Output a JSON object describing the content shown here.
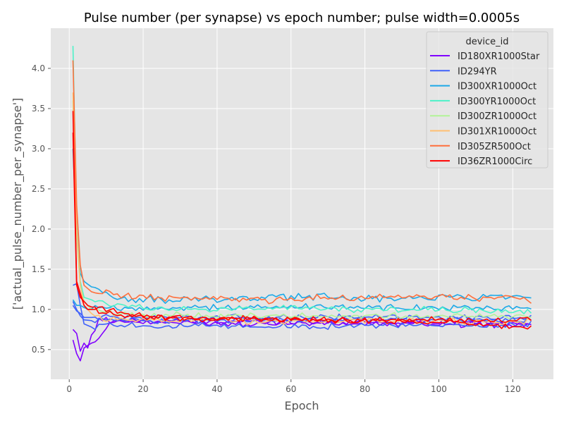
{
  "chart_data": {
    "type": "line",
    "title": "Pulse number (per synapse) vs epoch number; pulse width=0.0005s",
    "xlabel": "Epoch",
    "ylabel": "['actual_pulse_number_per_synapse']",
    "xlim": [
      -5,
      131
    ],
    "ylim": [
      0.13,
      4.5
    ],
    "xticks": [
      0,
      20,
      40,
      60,
      80,
      100,
      120
    ],
    "yticks": [
      0.5,
      1.0,
      1.5,
      2.0,
      2.5,
      3.0,
      3.5,
      4.0
    ],
    "grid": true,
    "legend": {
      "title": "device_id",
      "placement": "upper-right"
    },
    "series": [
      {
        "name": "ID180XR1000Star",
        "color": "#8000ff",
        "runs": [
          {
            "start": 1,
            "anchors": [
              [
                1,
                0.75
              ],
              [
                2,
                0.7
              ],
              [
                3,
                0.48
              ],
              [
                4,
                0.58
              ],
              [
                5,
                0.52
              ],
              [
                6,
                0.68
              ],
              [
                8,
                0.86
              ],
              [
                10,
                0.88
              ],
              [
                15,
                0.85
              ],
              [
                20,
                0.84
              ],
              [
                40,
                0.83
              ],
              [
                60,
                0.83
              ],
              [
                80,
                0.82
              ],
              [
                100,
                0.82
              ],
              [
                120,
                0.81
              ],
              [
                125,
                0.8
              ]
            ],
            "amp": 0.03
          },
          {
            "start": 1,
            "anchors": [
              [
                1,
                0.62
              ],
              [
                2,
                0.45
              ],
              [
                3,
                0.36
              ],
              [
                4,
                0.52
              ],
              [
                5,
                0.55
              ],
              [
                6,
                0.58
              ],
              [
                7,
                0.57
              ],
              [
                8,
                0.66
              ],
              [
                10,
                0.78
              ],
              [
                12,
                0.86
              ],
              [
                20,
                0.86
              ],
              [
                40,
                0.85
              ],
              [
                60,
                0.85
              ],
              [
                80,
                0.84
              ],
              [
                100,
                0.84
              ],
              [
                120,
                0.83
              ],
              [
                125,
                0.83
              ]
            ],
            "amp": 0.03
          }
        ]
      },
      {
        "name": "ID294YR",
        "color": "#4062fa",
        "runs": [
          {
            "start": 1,
            "anchors": [
              [
                1,
                1.3
              ],
              [
                2,
                1.32
              ],
              [
                3,
                1.05
              ],
              [
                4,
                0.82
              ],
              [
                5,
                0.8
              ],
              [
                6,
                0.78
              ],
              [
                8,
                0.8
              ],
              [
                10,
                0.82
              ],
              [
                20,
                0.8
              ],
              [
                40,
                0.79
              ],
              [
                60,
                0.79
              ],
              [
                80,
                0.8
              ],
              [
                100,
                0.8
              ],
              [
                120,
                0.8
              ],
              [
                125,
                0.82
              ]
            ],
            "amp": 0.03
          },
          {
            "start": 1,
            "anchors": [
              [
                1,
                1.1
              ],
              [
                2,
                1.0
              ],
              [
                3,
                0.92
              ],
              [
                4,
                0.87
              ],
              [
                6,
                0.86
              ],
              [
                10,
                0.88
              ],
              [
                20,
                0.87
              ],
              [
                40,
                0.86
              ],
              [
                60,
                0.86
              ],
              [
                80,
                0.87
              ],
              [
                100,
                0.87
              ],
              [
                120,
                0.86
              ],
              [
                125,
                0.87
              ]
            ],
            "amp": 0.03
          },
          {
            "start": 1,
            "anchors": [
              [
                1,
                1.05
              ],
              [
                2,
                0.98
              ],
              [
                3,
                0.95
              ],
              [
                4,
                0.9
              ],
              [
                6,
                0.9
              ],
              [
                10,
                0.91
              ],
              [
                20,
                0.9
              ],
              [
                40,
                0.9
              ],
              [
                60,
                0.9
              ],
              [
                80,
                0.9
              ],
              [
                100,
                0.9
              ],
              [
                120,
                0.89
              ],
              [
                125,
                0.9
              ]
            ],
            "amp": 0.03
          }
        ]
      },
      {
        "name": "ID300XR1000Oct",
        "color": "#1ca9e8",
        "runs": [
          {
            "start": 1,
            "anchors": [
              [
                1,
                3.0
              ],
              [
                2,
                1.9
              ],
              [
                3,
                1.45
              ],
              [
                4,
                1.35
              ],
              [
                6,
                1.28
              ],
              [
                8,
                1.25
              ],
              [
                12,
                1.15
              ],
              [
                20,
                1.12
              ],
              [
                40,
                1.12
              ],
              [
                60,
                1.16
              ],
              [
                80,
                1.14
              ],
              [
                100,
                1.15
              ],
              [
                120,
                1.15
              ],
              [
                125,
                1.15
              ]
            ],
            "amp": 0.035
          },
          {
            "start": 1,
            "anchors": [
              [
                1,
                1.12
              ],
              [
                2,
                1.05
              ],
              [
                3,
                1.05
              ],
              [
                5,
                1.0
              ],
              [
                10,
                1.02
              ],
              [
                20,
                1.01
              ],
              [
                40,
                1.02
              ],
              [
                60,
                1.03
              ],
              [
                80,
                1.03
              ],
              [
                100,
                1.02
              ],
              [
                120,
                1.02
              ],
              [
                125,
                1.03
              ]
            ],
            "amp": 0.03
          }
        ]
      },
      {
        "name": "ID300YR1000Oct",
        "color": "#4df2c8",
        "runs": [
          {
            "start": 1,
            "anchors": [
              [
                1,
                4.28
              ],
              [
                2,
                2.1
              ],
              [
                3,
                1.35
              ],
              [
                4,
                1.15
              ],
              [
                6,
                1.12
              ],
              [
                10,
                1.08
              ],
              [
                20,
                1.02
              ],
              [
                40,
                1.0
              ],
              [
                60,
                1.02
              ],
              [
                80,
                1.0
              ],
              [
                100,
                1.0
              ],
              [
                120,
                0.98
              ],
              [
                125,
                0.98
              ]
            ],
            "amp": 0.03
          }
        ]
      },
      {
        "name": "ID300ZR1000Oct",
        "color": "#b2f396",
        "runs": [
          {
            "start": 1,
            "anchors": [
              [
                1,
                3.6
              ],
              [
                2,
                1.9
              ],
              [
                3,
                1.3
              ],
              [
                4,
                1.1
              ],
              [
                6,
                1.0
              ],
              [
                10,
                0.95
              ],
              [
                20,
                0.93
              ],
              [
                40,
                0.92
              ],
              [
                60,
                0.92
              ],
              [
                80,
                0.91
              ],
              [
                100,
                0.92
              ],
              [
                120,
                0.92
              ],
              [
                125,
                0.9
              ]
            ],
            "amp": 0.03
          }
        ]
      },
      {
        "name": "ID301XR1000Oct",
        "color": "#ffbf71",
        "runs": [
          {
            "start": 1,
            "anchors": [
              [
                1,
                3.7
              ],
              [
                2,
                2.0
              ],
              [
                3,
                1.3
              ],
              [
                4,
                1.05
              ],
              [
                6,
                0.95
              ],
              [
                10,
                0.88
              ],
              [
                20,
                0.86
              ],
              [
                40,
                0.86
              ],
              [
                60,
                0.85
              ],
              [
                80,
                0.86
              ],
              [
                100,
                0.85
              ],
              [
                120,
                0.84
              ],
              [
                125,
                0.85
              ]
            ],
            "amp": 0.035
          }
        ]
      },
      {
        "name": "ID305ZR500Oct",
        "color": "#ff6f3c",
        "runs": [
          {
            "start": 1,
            "anchors": [
              [
                1,
                4.1
              ],
              [
                2,
                2.3
              ],
              [
                3,
                1.55
              ],
              [
                4,
                1.3
              ],
              [
                6,
                1.22
              ],
              [
                10,
                1.2
              ],
              [
                20,
                1.15
              ],
              [
                40,
                1.14
              ],
              [
                60,
                1.12
              ],
              [
                80,
                1.16
              ],
              [
                100,
                1.16
              ],
              [
                120,
                1.13
              ],
              [
                125,
                1.1
              ]
            ],
            "amp": 0.035
          }
        ]
      },
      {
        "name": "ID36ZR1000Circ",
        "color": "#ff0000",
        "runs": [
          {
            "start": 1,
            "anchors": [
              [
                1,
                3.47
              ],
              [
                2,
                1.35
              ],
              [
                3,
                1.2
              ],
              [
                4,
                1.05
              ],
              [
                5,
                1.0
              ],
              [
                8,
                1.0
              ],
              [
                10,
                0.98
              ],
              [
                20,
                0.92
              ],
              [
                40,
                0.9
              ],
              [
                60,
                0.88
              ],
              [
                80,
                0.86
              ],
              [
                100,
                0.84
              ],
              [
                120,
                0.8
              ],
              [
                125,
                0.77
              ]
            ],
            "amp": 0.035
          },
          {
            "start": 1,
            "anchors": [
              [
                1,
                3.2
              ],
              [
                2,
                1.3
              ],
              [
                3,
                1.15
              ],
              [
                5,
                1.05
              ],
              [
                10,
                0.95
              ],
              [
                20,
                0.9
              ],
              [
                40,
                0.88
              ],
              [
                60,
                0.87
              ],
              [
                80,
                0.86
              ],
              [
                100,
                0.87
              ],
              [
                120,
                0.86
              ],
              [
                125,
                0.9
              ]
            ],
            "amp": 0.03
          }
        ]
      }
    ]
  }
}
